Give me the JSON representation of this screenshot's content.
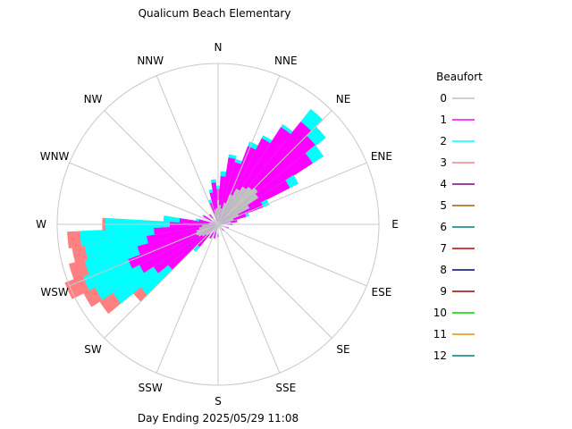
{
  "chart_data": {
    "type": "wind-rose",
    "title": "Qualicum Beach Elementary",
    "subtitle": "Day Ending 2025/05/29 11:08",
    "legend_title": "Beaufort",
    "directions": [
      "N",
      "NNE",
      "NE",
      "ENE",
      "E",
      "ESE",
      "SE",
      "SSE",
      "S",
      "SSW",
      "SW",
      "WSW",
      "W",
      "WNW",
      "NW",
      "NNW"
    ],
    "compass_angles": [
      0,
      22.5,
      45,
      67.5,
      90,
      112.5,
      135,
      157.5,
      180,
      202.5,
      225,
      247.5,
      270,
      292.5,
      315,
      337.5
    ],
    "grid": true,
    "legend": [
      {
        "level": "0",
        "color": "#c0c0c0"
      },
      {
        "level": "1",
        "color": "#ff00ff"
      },
      {
        "level": "2",
        "color": "#00ffff"
      },
      {
        "level": "3",
        "color": "#ff8080"
      },
      {
        "level": "4",
        "color": "#800080"
      },
      {
        "level": "5",
        "color": "#a06000"
      },
      {
        "level": "6",
        "color": "#008080"
      },
      {
        "level": "7",
        "color": "#c00000"
      },
      {
        "level": "8",
        "color": "#000080"
      },
      {
        "level": "9",
        "color": "#a00000"
      },
      {
        "level": "10",
        "color": "#00d000"
      },
      {
        "level": "11",
        "color": "#e09000"
      },
      {
        "level": "12",
        "color": "#008080"
      }
    ],
    "wedges": [
      {
        "angle": 0,
        "levels": [
          0.15,
          0.22,
          0.24,
          0.24
        ]
      },
      {
        "angle": 6,
        "levels": [
          0.12,
          0.3,
          0.33,
          0.33
        ]
      },
      {
        "angle": 12,
        "levels": [
          0.1,
          0.42,
          0.44,
          0.44
        ]
      },
      {
        "angle": 18,
        "levels": [
          0.14,
          0.4,
          0.42,
          0.42
        ]
      },
      {
        "angle": 24,
        "levels": [
          0.2,
          0.52,
          0.55,
          0.55
        ]
      },
      {
        "angle": 30,
        "levels": [
          0.25,
          0.6,
          0.62,
          0.62
        ]
      },
      {
        "angle": 36,
        "levels": [
          0.28,
          0.72,
          0.74,
          0.74
        ]
      },
      {
        "angle": 42,
        "levels": [
          0.3,
          0.82,
          0.92,
          0.92
        ]
      },
      {
        "angle": 48,
        "levels": [
          0.32,
          0.78,
          0.86,
          0.86
        ]
      },
      {
        "angle": 54,
        "levels": [
          0.3,
          0.7,
          0.78,
          0.78
        ]
      },
      {
        "angle": 60,
        "levels": [
          0.22,
          0.5,
          0.56,
          0.56
        ]
      },
      {
        "angle": 66,
        "levels": [
          0.14,
          0.3,
          0.34,
          0.34
        ]
      },
      {
        "angle": 72,
        "levels": [
          0.1,
          0.18,
          0.2,
          0.2
        ]
      },
      {
        "angle": 80,
        "levels": [
          0.08,
          0.12,
          0.12,
          0.12
        ]
      },
      {
        "angle": 90,
        "levels": [
          0.06,
          0.09,
          0.09,
          0.09
        ]
      },
      {
        "angle": 110,
        "levels": [
          0.05,
          0.07,
          0.07,
          0.07
        ]
      },
      {
        "angle": 140,
        "levels": [
          0.04,
          0.05,
          0.05,
          0.05
        ]
      },
      {
        "angle": 180,
        "levels": [
          0.05,
          0.08,
          0.08,
          0.08
        ]
      },
      {
        "angle": 195,
        "levels": [
          0.05,
          0.09,
          0.09,
          0.09
        ]
      },
      {
        "angle": 210,
        "levels": [
          0.06,
          0.1,
          0.1,
          0.1
        ]
      },
      {
        "angle": 222,
        "levels": [
          0.08,
          0.18,
          0.22,
          0.22
        ]
      },
      {
        "angle": 228,
        "levels": [
          0.1,
          0.4,
          0.62,
          0.68
        ]
      },
      {
        "angle": 234,
        "levels": [
          0.12,
          0.48,
          0.78,
          0.88
        ]
      },
      {
        "angle": 240,
        "levels": [
          0.14,
          0.55,
          0.86,
          0.94
        ]
      },
      {
        "angle": 246,
        "levels": [
          0.15,
          0.6,
          0.9,
          1.02
        ]
      },
      {
        "angle": 252,
        "levels": [
          0.14,
          0.52,
          0.86,
          0.96
        ]
      },
      {
        "angle": 258,
        "levels": [
          0.12,
          0.45,
          0.84,
          0.92
        ]
      },
      {
        "angle": 264,
        "levels": [
          0.1,
          0.4,
          0.86,
          0.94
        ]
      },
      {
        "angle": 270,
        "levels": [
          0.08,
          0.3,
          0.7,
          0.72
        ]
      },
      {
        "angle": 276,
        "levels": [
          0.06,
          0.24,
          0.34,
          0.34
        ]
      },
      {
        "angle": 282,
        "levels": [
          0.05,
          0.12,
          0.14,
          0.14
        ]
      },
      {
        "angle": 300,
        "levels": [
          0.05,
          0.1,
          0.11,
          0.11
        ]
      },
      {
        "angle": 320,
        "levels": [
          0.05,
          0.08,
          0.08,
          0.08
        ]
      },
      {
        "angle": 340,
        "levels": [
          0.07,
          0.14,
          0.16,
          0.16
        ]
      },
      {
        "angle": 348,
        "levels": [
          0.09,
          0.2,
          0.22,
          0.22
        ]
      },
      {
        "angle": 354,
        "levels": [
          0.1,
          0.26,
          0.28,
          0.28
        ]
      }
    ]
  }
}
